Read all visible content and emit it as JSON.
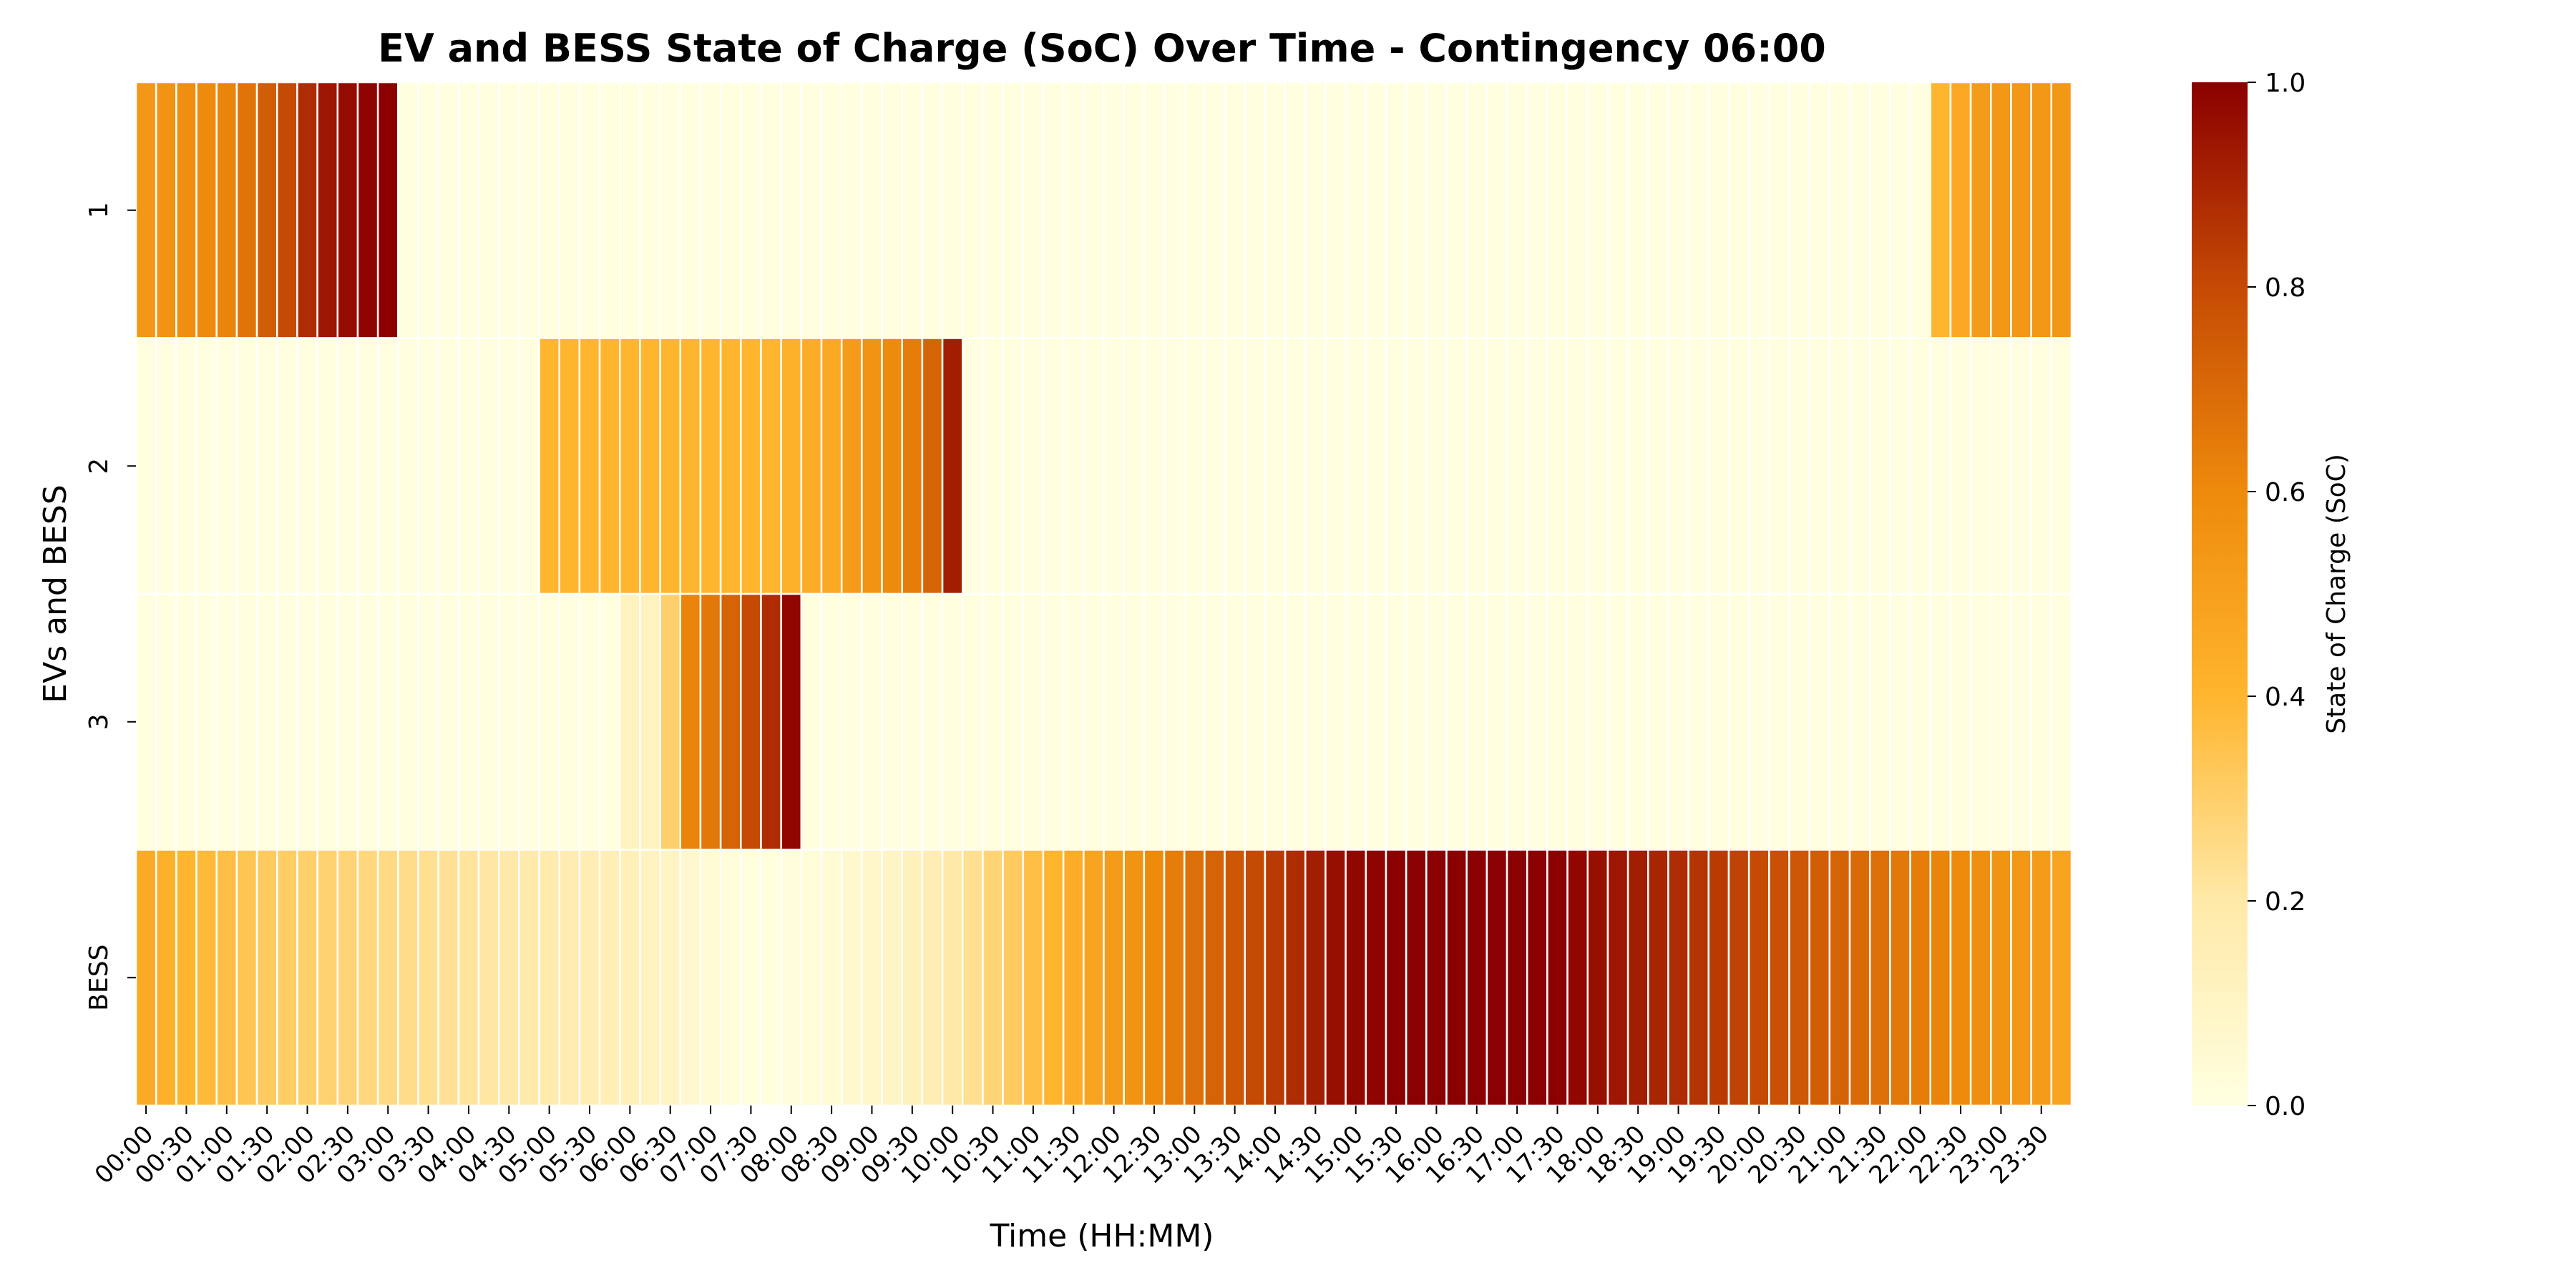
{
  "chart_data": {
    "type": "heatmap",
    "title": "EV and BESS State of Charge (SoC) Over Time - Contingency 06:00",
    "xlabel": "Time (HH:MM)",
    "ylabel": "EVs and BESS",
    "rows": [
      "1",
      "2",
      "3",
      "BESS"
    ],
    "x_tick_labels": [
      "00:00",
      "00:30",
      "01:00",
      "01:30",
      "02:00",
      "02:30",
      "03:00",
      "03:30",
      "04:00",
      "04:30",
      "05:00",
      "05:30",
      "06:00",
      "06:30",
      "07:00",
      "07:30",
      "08:00",
      "08:30",
      "09:00",
      "09:30",
      "10:00",
      "10:30",
      "11:00",
      "11:30",
      "12:00",
      "12:30",
      "13:00",
      "13:30",
      "14:00",
      "14:30",
      "15:00",
      "15:30",
      "16:00",
      "16:30",
      "17:00",
      "17:30",
      "18:00",
      "18:30",
      "19:00",
      "19:30",
      "20:00",
      "20:30",
      "21:00",
      "21:30",
      "22:00",
      "22:30",
      "23:00",
      "23:30"
    ],
    "time_step_minutes": 15,
    "values": [
      [
        0.54,
        0.56,
        0.58,
        0.6,
        0.62,
        0.67,
        0.74,
        0.8,
        0.88,
        0.94,
        0.97,
        0.99,
        1.0,
        0,
        0,
        0,
        0,
        0,
        0,
        0,
        0,
        0,
        0,
        0,
        0,
        0,
        0,
        0,
        0,
        0,
        0,
        0,
        0,
        0,
        0,
        0,
        0,
        0,
        0,
        0,
        0,
        0,
        0,
        0,
        0,
        0,
        0,
        0,
        0,
        0,
        0,
        0,
        0,
        0,
        0,
        0,
        0,
        0,
        0,
        0,
        0,
        0,
        0,
        0,
        0,
        0,
        0,
        0,
        0,
        0,
        0,
        0,
        0,
        0,
        0,
        0,
        0,
        0,
        0,
        0,
        0,
        0,
        0,
        0,
        0,
        0,
        0,
        0,
        0,
        0.4,
        0.46,
        0.52,
        0.54,
        0.54,
        0.54,
        0.54
      ],
      [
        0,
        0,
        0,
        0,
        0,
        0,
        0,
        0,
        0,
        0,
        0,
        0,
        0,
        0,
        0,
        0,
        0,
        0,
        0,
        0,
        0.4,
        0.4,
        0.4,
        0.4,
        0.4,
        0.4,
        0.4,
        0.4,
        0.4,
        0.4,
        0.4,
        0.4,
        0.42,
        0.44,
        0.46,
        0.52,
        0.56,
        0.6,
        0.64,
        0.72,
        0.92,
        0,
        0,
        0,
        0,
        0,
        0,
        0,
        0,
        0,
        0,
        0,
        0,
        0,
        0,
        0,
        0,
        0,
        0,
        0,
        0,
        0,
        0,
        0,
        0,
        0,
        0,
        0,
        0,
        0,
        0,
        0,
        0,
        0,
        0,
        0,
        0,
        0,
        0,
        0,
        0,
        0,
        0,
        0,
        0,
        0,
        0,
        0,
        0,
        0,
        0,
        0,
        0,
        0,
        0,
        0
      ],
      [
        0,
        0,
        0,
        0,
        0,
        0,
        0,
        0,
        0,
        0,
        0,
        0,
        0,
        0,
        0,
        0,
        0,
        0,
        0,
        0,
        0,
        0,
        0,
        0,
        0.12,
        0.12,
        0.3,
        0.62,
        0.66,
        0.72,
        0.8,
        0.88,
        0.98,
        0,
        0,
        0,
        0,
        0,
        0,
        0,
        0,
        0,
        0,
        0,
        0,
        0,
        0,
        0,
        0,
        0,
        0,
        0,
        0,
        0,
        0,
        0,
        0,
        0,
        0,
        0,
        0,
        0,
        0,
        0,
        0,
        0,
        0,
        0,
        0,
        0,
        0,
        0,
        0,
        0,
        0,
        0,
        0,
        0,
        0,
        0,
        0,
        0,
        0,
        0,
        0,
        0,
        0,
        0,
        0,
        0,
        0,
        0,
        0,
        0,
        0,
        0
      ],
      [
        0.45,
        0.42,
        0.4,
        0.38,
        0.36,
        0.34,
        0.32,
        0.31,
        0.3,
        0.29,
        0.28,
        0.27,
        0.26,
        0.25,
        0.24,
        0.23,
        0.22,
        0.21,
        0.2,
        0.19,
        0.18,
        0.17,
        0.16,
        0.15,
        0.14,
        0.12,
        0.1,
        0.06,
        0.04,
        0.02,
        0.01,
        0.01,
        0.02,
        0.03,
        0.04,
        0.06,
        0.08,
        0.1,
        0.13,
        0.16,
        0.2,
        0.24,
        0.28,
        0.32,
        0.36,
        0.4,
        0.44,
        0.48,
        0.52,
        0.56,
        0.6,
        0.64,
        0.68,
        0.72,
        0.76,
        0.8,
        0.84,
        0.88,
        0.92,
        0.96,
        0.98,
        0.99,
        1.0,
        1.0,
        1.0,
        1.0,
        1.0,
        1.0,
        1.0,
        1.0,
        1.0,
        0.98,
        0.96,
        0.94,
        0.92,
        0.9,
        0.88,
        0.86,
        0.84,
        0.82,
        0.8,
        0.78,
        0.76,
        0.74,
        0.72,
        0.7,
        0.68,
        0.66,
        0.64,
        0.62,
        0.6,
        0.58,
        0.56,
        0.54,
        0.52,
        0.48
      ]
    ],
    "colormap": "YlOrRd-like (light yellow → orange → dark red)",
    "colorbar": {
      "label": "State of Charge (SoC)",
      "range": [
        0.0,
        1.0
      ],
      "ticks": [
        "0.0",
        "0.2",
        "0.4",
        "0.6",
        "0.8",
        "1.0"
      ]
    }
  }
}
